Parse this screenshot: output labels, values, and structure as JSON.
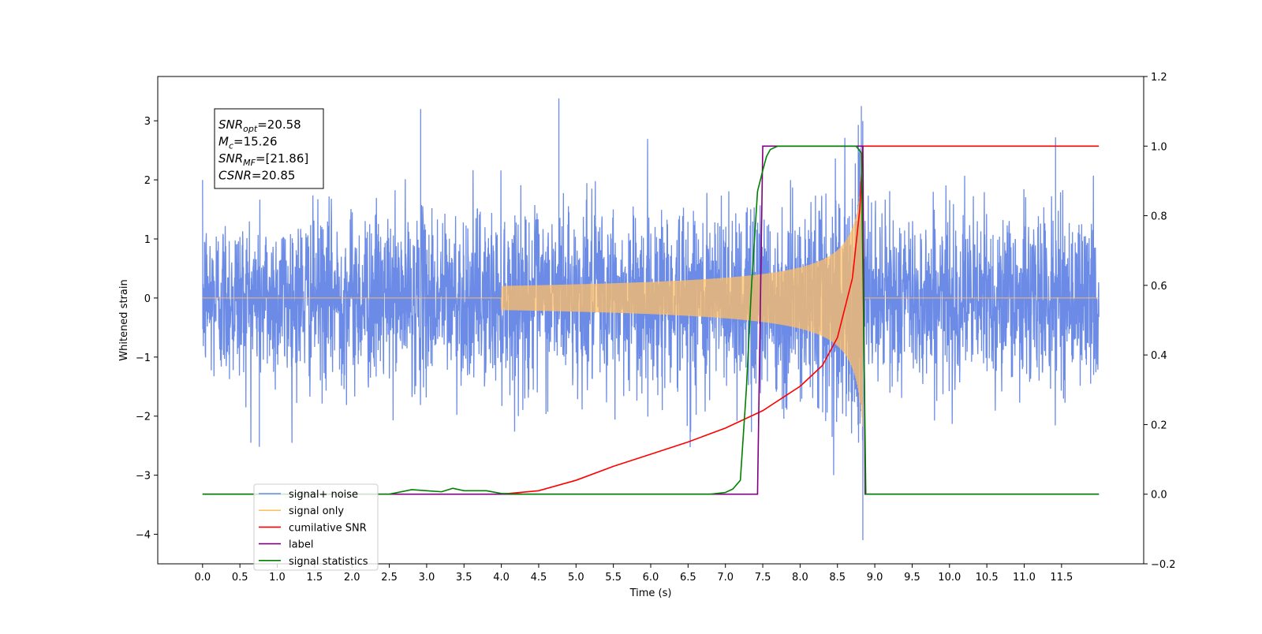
{
  "chart_data": {
    "type": "line",
    "xlabel": "Time (s)",
    "ylabel_left": "Whitened strain",
    "ylabel_right": "",
    "xlim": [
      -0.6,
      12.6
    ],
    "ylim_left": [
      -4.5,
      3.75
    ],
    "ylim_right": [
      -0.2,
      1.2
    ],
    "x_ticks": [
      0.0,
      0.5,
      1.0,
      1.5,
      2.0,
      2.5,
      3.0,
      3.5,
      4.0,
      4.5,
      5.0,
      5.5,
      6.0,
      6.5,
      7.0,
      7.5,
      8.0,
      8.5,
      9.0,
      9.5,
      10.0,
      10.5,
      11.0,
      11.5
    ],
    "x_tick_labels": [
      "0.0",
      "0.5",
      "1.0",
      "1.5",
      "2.0",
      "2.5",
      "3.0",
      "3.5",
      "4.0",
      "4.5",
      "5.0",
      "5.5",
      "6.0",
      "6.5",
      "7.0",
      "7.5",
      "8.0",
      "8.5",
      "9.0",
      "9.5",
      "10.0",
      "10.5",
      "11.0",
      "11.5"
    ],
    "y_left_ticks": [
      3,
      2,
      1,
      0,
      -1,
      -2,
      -3,
      -4
    ],
    "y_left_tick_labels": [
      "3",
      "2",
      "1",
      "0",
      "−1",
      "−2",
      "−3",
      "−4"
    ],
    "y_right_ticks": [
      1.2,
      1.0,
      0.8,
      0.6,
      0.4,
      0.2,
      0.0,
      -0.2
    ],
    "y_right_tick_labels": [
      "1.2",
      "1.0",
      "0.8",
      "0.6",
      "0.4",
      "0.2",
      "0.0",
      "−0.2"
    ],
    "grid": false,
    "legend_position": "lower-left",
    "legend": [
      {
        "label": "signal+ noise",
        "color": "#6b8be6"
      },
      {
        "label": "signal only",
        "color": "#ffbf66"
      },
      {
        "label": "cumilative SNR",
        "color": "#ff0000"
      },
      {
        "label": "label",
        "color": "#800080"
      },
      {
        "label": "signal statistics",
        "color": "#008000"
      }
    ],
    "annotation": [
      {
        "name": "SNR",
        "sub": "opt",
        "value": "=20.58"
      },
      {
        "name": "M",
        "sub": "c",
        "value": "=15.26"
      },
      {
        "name": "SNR",
        "sub": "MF",
        "value": "=[21.86]"
      },
      {
        "name": "CSNR",
        "sub": "",
        "value": "=20.85"
      }
    ],
    "series": [
      {
        "name": "signal+ noise",
        "axis": "left",
        "color": "#6b8be6",
        "x_range": [
          0.0,
          12.0
        ],
        "noise_band": [
          -1.4,
          1.4
        ],
        "notable_peaks": [
          {
            "x": 2.92,
            "y": 3.2
          },
          {
            "x": 4.77,
            "y": 3.38
          },
          {
            "x": 8.82,
            "y": 3.25
          },
          {
            "x": 8.84,
            "y": -4.1
          },
          {
            "x": 11.42,
            "y": 2.72
          },
          {
            "x": 0.76,
            "y": -2.52
          }
        ]
      },
      {
        "name": "signal only",
        "axis": "left",
        "color": "#ffbf66",
        "x_range": [
          0.0,
          12.0
        ],
        "chirp_start": 4.0,
        "chirp_end": 8.84,
        "amplitude_at_end": 2.3
      },
      {
        "name": "cumilative SNR",
        "axis": "right",
        "color": "#ff0000",
        "x": [
          4.0,
          4.5,
          5.0,
          5.5,
          6.0,
          6.5,
          7.0,
          7.5,
          8.0,
          8.3,
          8.5,
          8.7,
          8.8,
          8.84,
          12.0
        ],
        "y": [
          0.0,
          0.01,
          0.04,
          0.08,
          0.115,
          0.15,
          0.19,
          0.24,
          0.31,
          0.37,
          0.45,
          0.62,
          0.82,
          1.0,
          1.0
        ]
      },
      {
        "name": "label",
        "axis": "right",
        "color": "#800080",
        "x": [
          0.0,
          7.43,
          7.5,
          8.84,
          8.87,
          12.0
        ],
        "y": [
          0.0,
          0.0,
          1.0,
          1.0,
          0.0,
          0.0
        ]
      },
      {
        "name": "signal statistics",
        "axis": "right",
        "color": "#008000",
        "x": [
          0.0,
          2.0,
          2.5,
          2.8,
          3.0,
          3.2,
          3.35,
          3.5,
          3.8,
          4.0,
          4.3,
          4.5,
          5.0,
          6.8,
          7.0,
          7.1,
          7.2,
          7.28,
          7.35,
          7.43,
          7.5,
          7.55,
          7.6,
          7.7,
          8.0,
          8.5,
          8.75,
          8.82,
          8.85,
          8.88,
          12.0
        ],
        "y": [
          0.0,
          0.0,
          0.0,
          0.013,
          0.01,
          0.007,
          0.017,
          0.01,
          0.01,
          0.002,
          0.0,
          0.0,
          0.0,
          0.0,
          0.005,
          0.015,
          0.04,
          0.3,
          0.6,
          0.87,
          0.93,
          0.97,
          0.99,
          1.0,
          1.0,
          1.0,
          1.0,
          0.98,
          0.5,
          0.0,
          0.0
        ]
      }
    ]
  }
}
